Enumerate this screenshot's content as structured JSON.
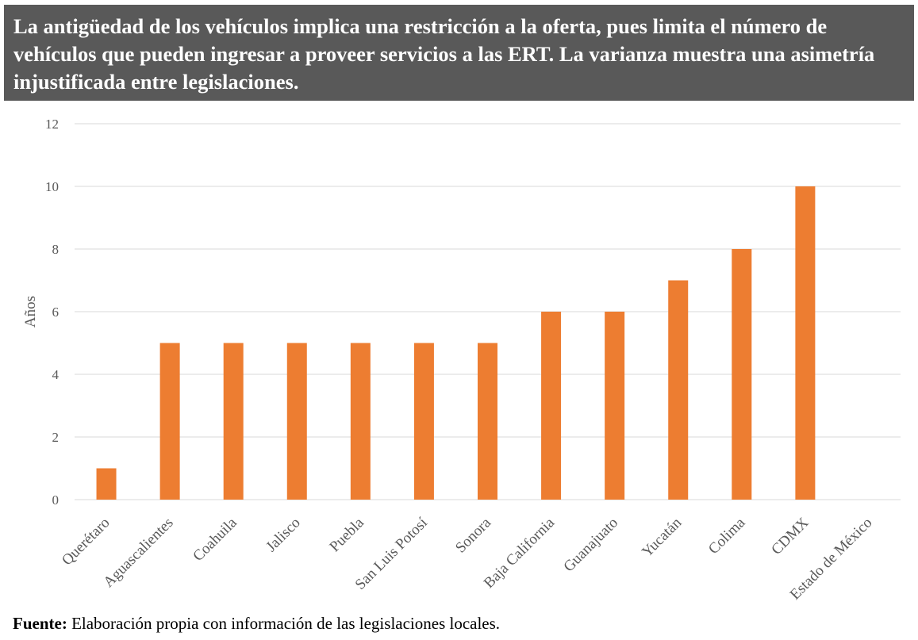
{
  "title": "La antigüedad de los vehículos implica una restricción a la oferta, pues limita el número de vehículos que pueden ingresar a proveer servicios a las ERT. La varianza muestra una asimetría injustificada entre legislaciones.",
  "colors": {
    "banner": "#595959",
    "bar": "#ED7D31",
    "grid": "#D9D9D9",
    "axis_text": "#595959"
  },
  "footer": {
    "label": "Fuente:",
    "text": "Elaboración propia con información de las legislaciones locales."
  },
  "chart_data": {
    "type": "bar",
    "title": "",
    "xlabel": "",
    "ylabel": "Años",
    "categories": [
      "Querétaro",
      "Aguascalientes",
      "Coahuila",
      "Jalisco",
      "Puebla",
      "San Luis Potosí",
      "Sonora",
      "Baja California",
      "Guanajuato",
      "Yucatán",
      "Colima",
      "CDMX",
      "Estado de México"
    ],
    "values": [
      1,
      5,
      5,
      5,
      5,
      5,
      5,
      6,
      6,
      7,
      8,
      10,
      0
    ],
    "ylim": [
      0,
      12
    ],
    "yticks": [
      0,
      2,
      4,
      6,
      8,
      10,
      12
    ],
    "grid": true,
    "legend": "none"
  }
}
